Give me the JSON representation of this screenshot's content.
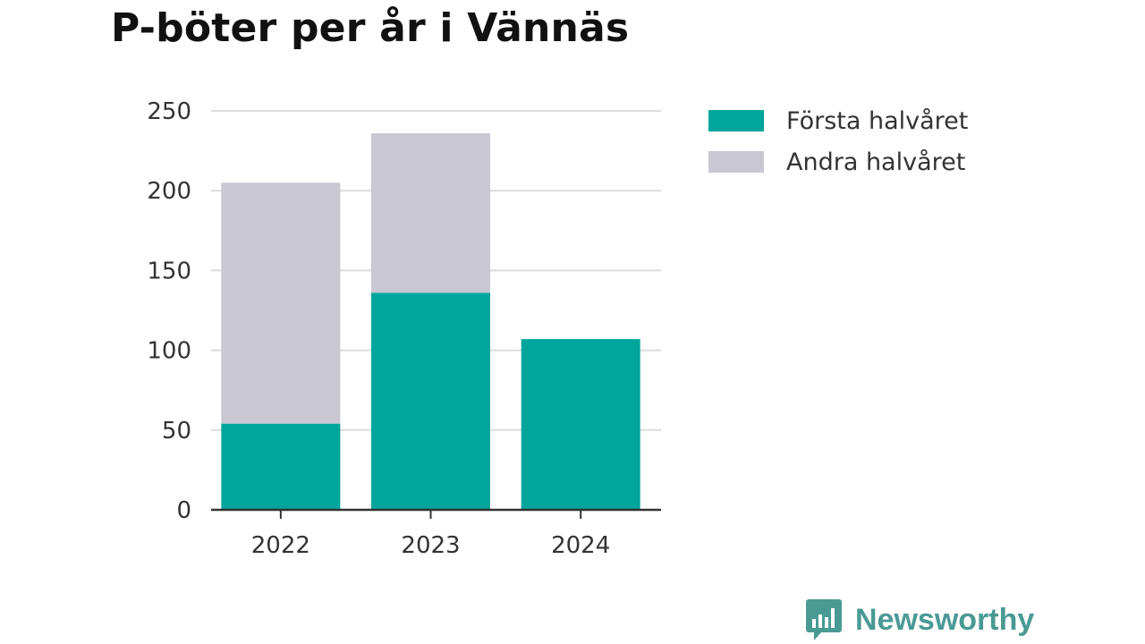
{
  "title": "P-böter per år i Vännäs",
  "brand": {
    "name": "Newsworthy",
    "icon": "newsworthy-chart-bubble-icon"
  },
  "colors": {
    "first_half": "#00a59b",
    "second_half": "#c8c7d2",
    "grid": "#dcdcdc",
    "axis": "#333333"
  },
  "chart_data": {
    "type": "bar",
    "stacked": true,
    "title": "P-böter per år i Vännäs",
    "xlabel": "",
    "ylabel": "",
    "categories": [
      "2022",
      "2023",
      "2024"
    ],
    "series": [
      {
        "name": "Första halvåret",
        "values": [
          54,
          136,
          107
        ],
        "color": "#00a59b"
      },
      {
        "name": "Andra halvåret",
        "values": [
          151,
          100,
          0
        ],
        "color": "#c8c7d2"
      }
    ],
    "ylim": [
      0,
      250
    ],
    "yticks": [
      "0",
      "50",
      "100",
      "150",
      "200",
      "250"
    ],
    "grid": true,
    "legend_position": "right"
  }
}
